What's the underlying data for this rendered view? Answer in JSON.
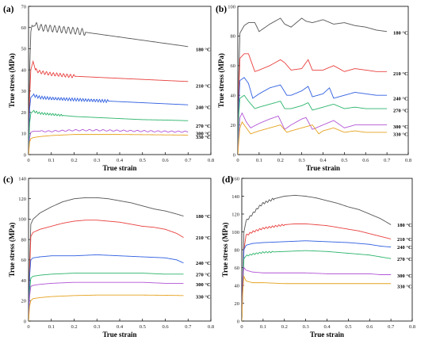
{
  "figure": {
    "colors": {
      "180": "#555555",
      "210": "#e8403e",
      "240": "#2f5fe0",
      "270": "#2cb46b",
      "300": "#b255d6",
      "330": "#e6a21f"
    }
  },
  "chart_data": [
    {
      "type": "line",
      "panel": "(a)",
      "xlabel": "True strain",
      "ylabel": "True stress (MPa)",
      "xlim": [
        0,
        0.8
      ],
      "ylim": [
        0,
        70
      ],
      "xticks": [
        "0",
        "0.1",
        "0.2",
        "0.3",
        "0.4",
        "0.5",
        "0.6",
        "0.7",
        "0.8"
      ],
      "yticks": [
        "0",
        "10",
        "20",
        "30",
        "40",
        "50",
        "60",
        "70"
      ],
      "legend_placement": "right, beside line ends",
      "series": [
        {
          "name": "180 °C",
          "key": "180",
          "x": [
            0,
            0.005,
            0.01,
            0.015,
            0.02,
            0.03,
            0.05,
            0.1,
            0.2,
            0.3,
            0.4,
            0.5,
            0.6,
            0.7
          ],
          "values": [
            0,
            40,
            58,
            61,
            60.5,
            61,
            60,
            59.5,
            58.5,
            57,
            55.5,
            54,
            52.5,
            51
          ],
          "osc": {
            "from": 0.03,
            "to": 0.25,
            "amp": 1.6,
            "period": 0.02
          }
        },
        {
          "name": "210 °C",
          "key": "210",
          "x": [
            0,
            0.005,
            0.01,
            0.02,
            0.03,
            0.05,
            0.1,
            0.2,
            0.3,
            0.4,
            0.5,
            0.6,
            0.7
          ],
          "values": [
            0,
            28,
            40,
            44,
            40,
            39,
            38,
            37,
            36.5,
            36,
            35.5,
            35,
            34.5
          ],
          "osc": {
            "from": 0.03,
            "to": 0.2,
            "amp": 0.8,
            "period": 0.015
          }
        },
        {
          "name": "240 °C",
          "key": "240",
          "x": [
            0,
            0.005,
            0.01,
            0.02,
            0.05,
            0.1,
            0.2,
            0.3,
            0.4,
            0.5,
            0.6,
            0.7
          ],
          "values": [
            0,
            22,
            27,
            28,
            27,
            26.5,
            26,
            25.5,
            25,
            24.5,
            24,
            23.5
          ],
          "osc": {
            "from": 0.02,
            "to": 0.35,
            "amp": 0.7,
            "period": 0.012
          }
        },
        {
          "name": "270 °C",
          "key": "270",
          "x": [
            0,
            0.005,
            0.01,
            0.02,
            0.05,
            0.1,
            0.2,
            0.3,
            0.4,
            0.5,
            0.6,
            0.7
          ],
          "values": [
            0,
            15,
            19.5,
            20.5,
            19.5,
            19,
            18,
            17.5,
            17,
            16.5,
            16.3,
            16
          ],
          "osc": {
            "from": 0.02,
            "to": 0.15,
            "amp": 0.5,
            "period": 0.012
          }
        },
        {
          "name": "300 °C",
          "key": "300",
          "x": [
            0,
            0.005,
            0.01,
            0.02,
            0.05,
            0.1,
            0.2,
            0.3,
            0.4,
            0.5,
            0.6,
            0.7
          ],
          "values": [
            0,
            8,
            10.5,
            11,
            11,
            11,
            11.5,
            11.5,
            11.3,
            11.1,
            10.9,
            10.8
          ],
          "osc": {
            "from": 0.05,
            "to": 0.7,
            "amp": 0.3,
            "period": 0.03
          }
        },
        {
          "name": "330 °C",
          "key": "330",
          "x": [
            0,
            0.005,
            0.01,
            0.02,
            0.05,
            0.1,
            0.2,
            0.3,
            0.4,
            0.5,
            0.6,
            0.7
          ],
          "values": [
            0,
            6,
            7.5,
            8,
            8.5,
            9,
            9.5,
            9.5,
            9.5,
            9.4,
            9.3,
            9.2
          ],
          "osc": null
        }
      ]
    },
    {
      "type": "line",
      "panel": "(b)",
      "xlabel": "True strain",
      "ylabel": "True stress (MPa)",
      "xlim": [
        0,
        0.8
      ],
      "ylim": [
        0,
        100
      ],
      "xticks": [
        "0",
        "0.1",
        "0.2",
        "0.3",
        "0.4",
        "0.5",
        "0.6",
        "0.7",
        "0.8"
      ],
      "yticks": [
        "0",
        "20",
        "40",
        "60",
        "80",
        "100"
      ],
      "legend_placement": "right, beside line ends",
      "series": [
        {
          "name": "180 °C",
          "key": "180",
          "x": [
            0,
            0.005,
            0.01,
            0.03,
            0.05,
            0.08,
            0.1,
            0.12,
            0.15,
            0.2,
            0.22,
            0.25,
            0.3,
            0.32,
            0.35,
            0.4,
            0.45,
            0.5,
            0.55,
            0.6,
            0.65,
            0.7
          ],
          "values": [
            0,
            55,
            82,
            87,
            89,
            89,
            83,
            85,
            88,
            92,
            88,
            86,
            92,
            90,
            89,
            91,
            88,
            89,
            87,
            86,
            84,
            83
          ],
          "osc": null
        },
        {
          "name": "210 °C",
          "key": "210",
          "x": [
            0,
            0.005,
            0.01,
            0.03,
            0.05,
            0.08,
            0.1,
            0.15,
            0.2,
            0.22,
            0.25,
            0.3,
            0.33,
            0.35,
            0.4,
            0.45,
            0.5,
            0.55,
            0.6,
            0.65,
            0.7
          ],
          "values": [
            0,
            45,
            65,
            68,
            68,
            56,
            57,
            60,
            64,
            62,
            57,
            58,
            64,
            57,
            57,
            60,
            56,
            58,
            57,
            56,
            56
          ],
          "osc": null
        },
        {
          "name": "240 °C",
          "key": "240",
          "x": [
            0,
            0.005,
            0.01,
            0.03,
            0.05,
            0.07,
            0.1,
            0.15,
            0.2,
            0.23,
            0.25,
            0.3,
            0.33,
            0.35,
            0.4,
            0.43,
            0.45,
            0.5,
            0.55,
            0.6,
            0.65,
            0.7
          ],
          "values": [
            0,
            35,
            50,
            52,
            48,
            38,
            41,
            45,
            47,
            40,
            40,
            43,
            46,
            39,
            41,
            45,
            38,
            40,
            42,
            41,
            40,
            40
          ],
          "osc": null
        },
        {
          "name": "270 °C",
          "key": "270",
          "x": [
            0,
            0.005,
            0.01,
            0.03,
            0.05,
            0.08,
            0.1,
            0.15,
            0.2,
            0.22,
            0.25,
            0.3,
            0.33,
            0.35,
            0.4,
            0.45,
            0.5,
            0.55,
            0.6,
            0.65,
            0.7
          ],
          "values": [
            0,
            28,
            38,
            40,
            36,
            31,
            32,
            34,
            36,
            31,
            31,
            33,
            35,
            30,
            32,
            34,
            31,
            32,
            31,
            31,
            31
          ],
          "osc": null
        },
        {
          "name": "300 °C",
          "key": "300",
          "x": [
            0,
            0.005,
            0.01,
            0.02,
            0.04,
            0.06,
            0.1,
            0.15,
            0.19,
            0.22,
            0.25,
            0.3,
            0.32,
            0.35,
            0.4,
            0.45,
            0.5,
            0.55,
            0.6,
            0.65,
            0.7
          ],
          "values": [
            0,
            15,
            25,
            28,
            22,
            18,
            21,
            24,
            26,
            17,
            20,
            24,
            25,
            17,
            20,
            23,
            18,
            20,
            20,
            20,
            20
          ],
          "osc": null
        },
        {
          "name": "330 °C",
          "key": "330",
          "x": [
            0,
            0.005,
            0.01,
            0.02,
            0.04,
            0.06,
            0.1,
            0.15,
            0.2,
            0.23,
            0.25,
            0.3,
            0.35,
            0.38,
            0.4,
            0.45,
            0.5,
            0.55,
            0.6,
            0.65,
            0.7
          ],
          "values": [
            0,
            10,
            18,
            22,
            18,
            14,
            16,
            18,
            20,
            15,
            16,
            18,
            20,
            14,
            16,
            18,
            15,
            16,
            15,
            15,
            15
          ],
          "osc": null
        }
      ]
    },
    {
      "type": "line",
      "panel": "(c)",
      "xlabel": "True strain",
      "ylabel": "True stress (MPa)",
      "xlim": [
        0,
        0.8
      ],
      "ylim": [
        0,
        140
      ],
      "xticks": [
        "0",
        "0.1",
        "0.2",
        "0.3",
        "0.4",
        "0.5",
        "0.6",
        "0.7",
        "0.8"
      ],
      "yticks": [
        "0",
        "20",
        "40",
        "60",
        "80",
        "100",
        "120",
        "140"
      ],
      "legend_placement": "right, beside line ends",
      "series": [
        {
          "name": "180 °C",
          "key": "180",
          "x": [
            0,
            0.005,
            0.01,
            0.02,
            0.05,
            0.1,
            0.15,
            0.2,
            0.25,
            0.3,
            0.35,
            0.4,
            0.45,
            0.5,
            0.55,
            0.6,
            0.65,
            0.68
          ],
          "values": [
            0,
            60,
            95,
            100,
            106,
            112,
            117,
            120,
            121,
            121,
            120,
            118,
            116,
            113,
            110,
            108,
            105,
            103
          ],
          "osc": null
        },
        {
          "name": "210 °C",
          "key": "210",
          "x": [
            0,
            0.005,
            0.01,
            0.02,
            0.05,
            0.1,
            0.15,
            0.2,
            0.25,
            0.3,
            0.35,
            0.4,
            0.45,
            0.5,
            0.55,
            0.6,
            0.65,
            0.68
          ],
          "values": [
            0,
            50,
            83,
            87,
            90,
            93,
            96,
            98,
            99,
            99,
            98,
            97,
            95,
            93,
            92,
            90,
            86,
            82
          ],
          "osc": null
        },
        {
          "name": "240 °C",
          "key": "240",
          "x": [
            0,
            0.005,
            0.01,
            0.02,
            0.05,
            0.1,
            0.2,
            0.3,
            0.4,
            0.5,
            0.6,
            0.65,
            0.68
          ],
          "values": [
            0,
            45,
            60,
            62,
            63,
            64,
            64,
            65,
            64,
            63,
            62,
            60,
            57
          ],
          "osc": null
        },
        {
          "name": "270 °C",
          "key": "270",
          "x": [
            0,
            0.005,
            0.01,
            0.02,
            0.05,
            0.1,
            0.2,
            0.3,
            0.4,
            0.5,
            0.6,
            0.68
          ],
          "values": [
            0,
            30,
            42,
            44,
            45,
            46,
            47,
            47,
            47,
            47,
            46,
            46
          ],
          "osc": null
        },
        {
          "name": "300 °C",
          "key": "300",
          "x": [
            0,
            0.005,
            0.01,
            0.02,
            0.05,
            0.1,
            0.2,
            0.3,
            0.4,
            0.5,
            0.6,
            0.68
          ],
          "values": [
            0,
            25,
            34,
            35,
            36,
            37,
            38,
            38,
            38,
            38,
            37,
            37
          ],
          "osc": null
        },
        {
          "name": "330 °C",
          "key": "330",
          "x": [
            0,
            0.005,
            0.01,
            0.02,
            0.05,
            0.1,
            0.2,
            0.3,
            0.4,
            0.5,
            0.6,
            0.68
          ],
          "values": [
            0,
            15,
            20,
            22,
            23,
            24,
            25,
            25.5,
            25.5,
            25.5,
            25.3,
            25
          ],
          "osc": null
        }
      ]
    },
    {
      "type": "line",
      "panel": "(d)",
      "xlabel": "True strain",
      "ylabel": "True stress (MPa)",
      "xlim": [
        0,
        0.8
      ],
      "ylim": [
        0,
        160
      ],
      "xticks": [
        "0",
        "0.1",
        "0.2",
        "0.3",
        "0.4",
        "0.5",
        "0.6",
        "0.7",
        "0.8"
      ],
      "yticks": [
        "0",
        "20",
        "40",
        "60",
        "80",
        "100",
        "120",
        "140",
        "160"
      ],
      "legend_placement": "right, beside line ends",
      "series": [
        {
          "name": "180 °C",
          "key": "180",
          "x": [
            0,
            0.005,
            0.01,
            0.02,
            0.05,
            0.08,
            0.1,
            0.15,
            0.2,
            0.25,
            0.3,
            0.35,
            0.4,
            0.45,
            0.5,
            0.55,
            0.6,
            0.65,
            0.7
          ],
          "values": [
            0,
            50,
            100,
            112,
            120,
            128,
            132,
            137,
            140,
            141,
            140,
            138,
            135,
            132,
            128,
            125,
            120,
            115,
            108
          ],
          "osc": {
            "from": 0.02,
            "to": 0.15,
            "amp": 1.2,
            "period": 0.015
          }
        },
        {
          "name": "210 °C",
          "key": "210",
          "x": [
            0,
            0.005,
            0.01,
            0.02,
            0.05,
            0.1,
            0.15,
            0.2,
            0.25,
            0.3,
            0.35,
            0.4,
            0.45,
            0.5,
            0.55,
            0.6,
            0.65,
            0.7
          ],
          "values": [
            0,
            40,
            80,
            96,
            100,
            104,
            106,
            108,
            109,
            109,
            108,
            107,
            105,
            103,
            101,
            98,
            95,
            92
          ],
          "osc": {
            "from": 0.02,
            "to": 0.2,
            "amp": 1.0,
            "period": 0.015
          }
        },
        {
          "name": "240 °C",
          "key": "240",
          "x": [
            0,
            0.005,
            0.01,
            0.02,
            0.05,
            0.1,
            0.2,
            0.3,
            0.4,
            0.5,
            0.6,
            0.65,
            0.7
          ],
          "values": [
            0,
            40,
            80,
            85,
            87,
            88,
            89,
            90,
            89,
            88,
            86,
            84,
            83
          ],
          "osc": null
        },
        {
          "name": "270 °C",
          "key": "270",
          "x": [
            0,
            0.005,
            0.01,
            0.02,
            0.05,
            0.1,
            0.2,
            0.3,
            0.4,
            0.5,
            0.6,
            0.65,
            0.7
          ],
          "values": [
            0,
            40,
            70,
            73,
            75,
            77,
            78,
            79,
            78,
            76,
            74,
            72,
            70
          ],
          "osc": {
            "from": 0.02,
            "to": 0.15,
            "amp": 0.8,
            "period": 0.015
          }
        },
        {
          "name": "300 °C",
          "key": "300",
          "x": [
            0,
            0.005,
            0.01,
            0.02,
            0.05,
            0.1,
            0.2,
            0.3,
            0.4,
            0.5,
            0.6,
            0.65,
            0.7
          ],
          "values": [
            0,
            50,
            60,
            57,
            55,
            54,
            54,
            54,
            53,
            53,
            53,
            52,
            52
          ],
          "osc": null
        },
        {
          "name": "330 °C",
          "key": "330",
          "x": [
            0,
            0.005,
            0.01,
            0.02,
            0.05,
            0.1,
            0.2,
            0.3,
            0.4,
            0.5,
            0.6,
            0.65,
            0.7
          ],
          "values": [
            0,
            35,
            50,
            45,
            43,
            43,
            42,
            42,
            42,
            42,
            42,
            42,
            42
          ],
          "osc": null
        }
      ]
    }
  ]
}
